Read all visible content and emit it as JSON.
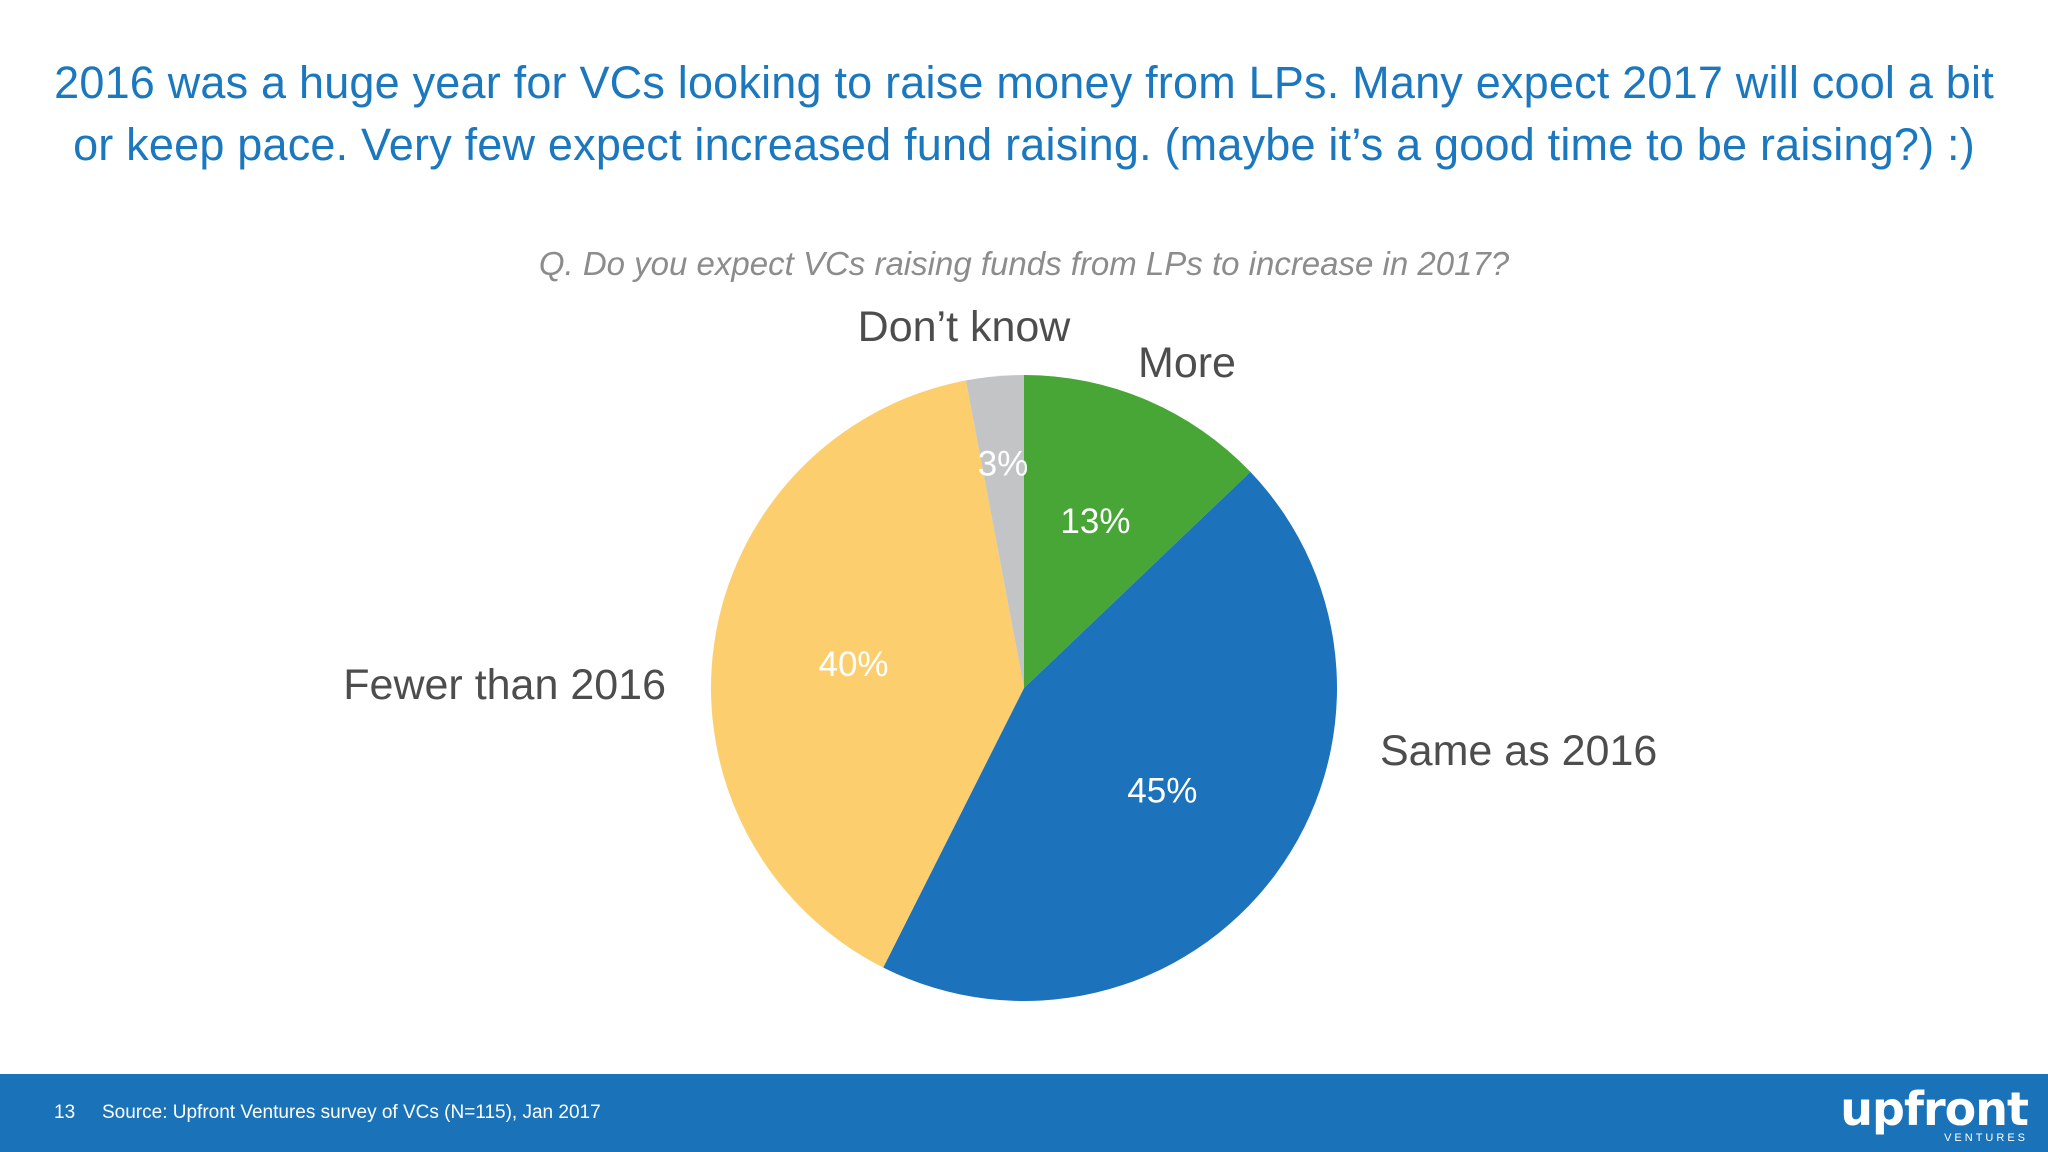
{
  "headline": {
    "line1": "2016 was a huge year for VCs looking to raise money from LPs. Many expect 2017 will cool a bit",
    "line2": "or keep pace. Very few expect increased fund raising. (maybe it’s a good time to be raising?) :)"
  },
  "chart_data": {
    "type": "pie",
    "title": "Q. Do you expect VCs raising funds from LPs to increase in 2017?",
    "slices": [
      {
        "label": "More",
        "value": 13,
        "value_label": "13%",
        "color": "#47a636"
      },
      {
        "label": "Same as 2016",
        "value": 45,
        "value_label": "45%",
        "color": "#1c72bb"
      },
      {
        "label": "Fewer than 2016",
        "value": 40,
        "value_label": "40%",
        "color": "#fcce6e"
      },
      {
        "label": "Don’t know",
        "value": 3,
        "value_label": "3%",
        "color": "#c3c4c6"
      }
    ]
  },
  "footer": {
    "page_number": "13",
    "source": "Source: Upfront Ventures survey of VCs (N=115), Jan 2017",
    "logo_text": "upfront",
    "logo_subtext": "VENTURES",
    "background_color": "#1a72b8"
  }
}
